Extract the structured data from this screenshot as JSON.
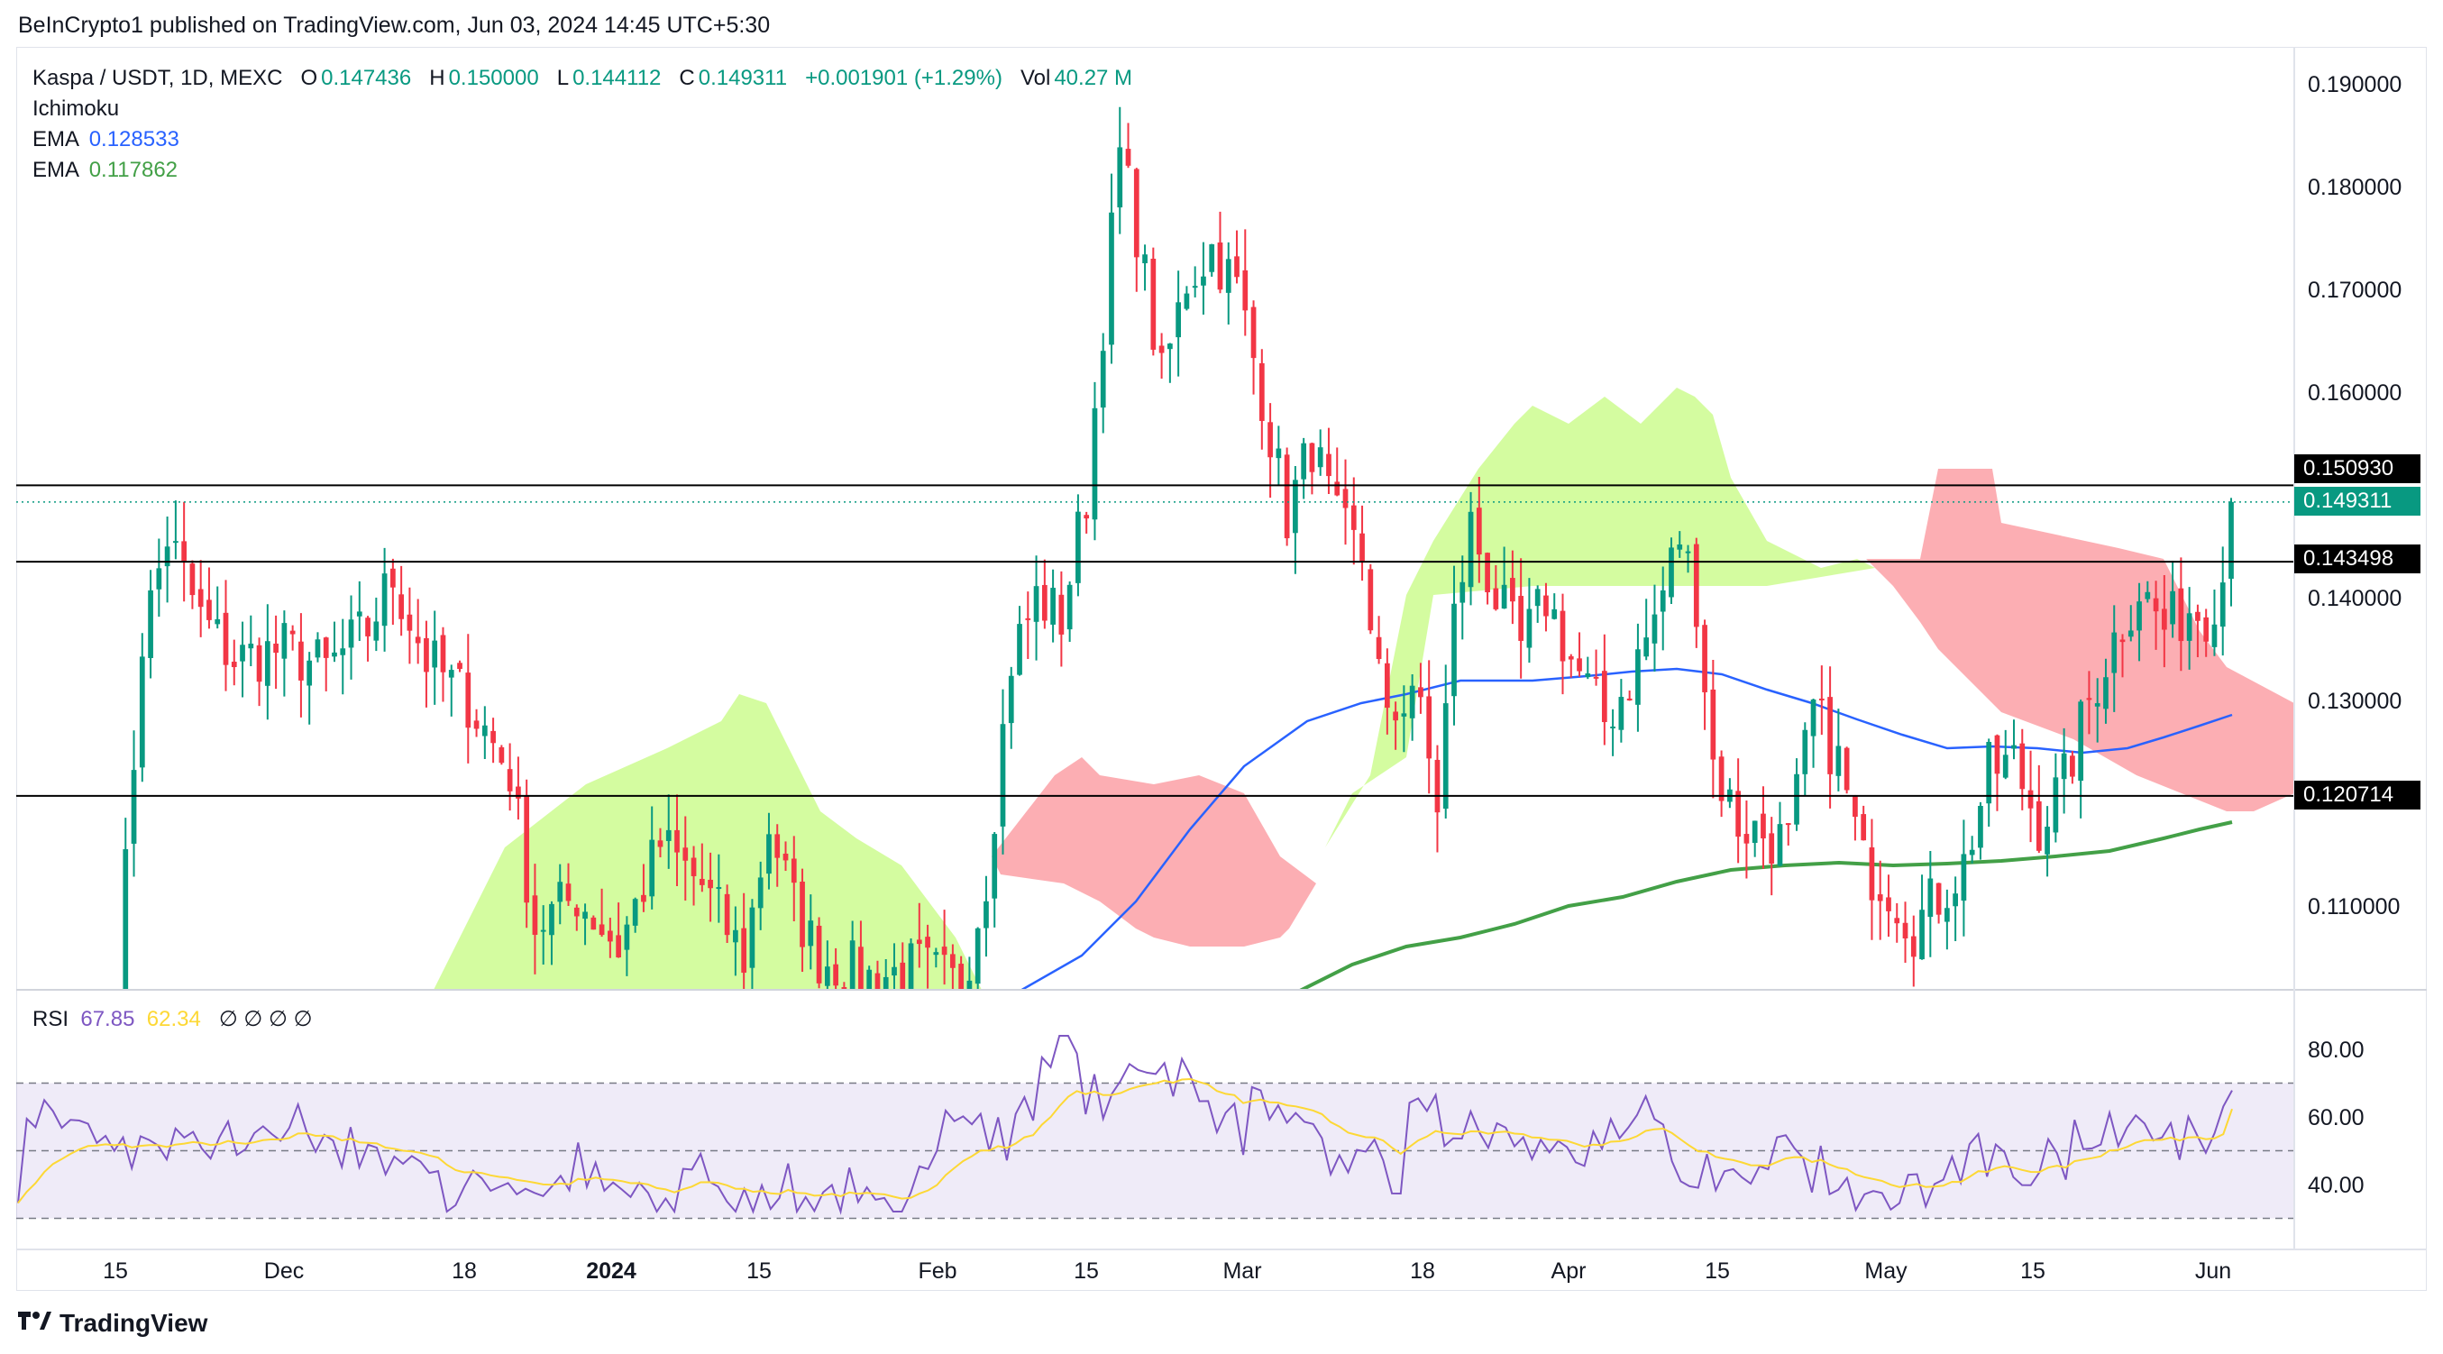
{
  "header": {
    "publisher": "BeInCrypto1 published on TradingView.com, Jun 03, 2024 14:45 UTC+5:30"
  },
  "legend": {
    "symbol": "Kaspa / USDT, 1D, MEXC",
    "o_label": "O",
    "o": "0.147436",
    "h_label": "H",
    "h": "0.150000",
    "l_label": "L",
    "l": "0.144112",
    "c_label": "C",
    "c": "0.149311",
    "change": "+0.001901 (+1.29%)",
    "vol_label": "Vol",
    "vol": "40.27 M",
    "ichimoku": "Ichimoku",
    "ema1_label": "EMA",
    "ema1": "0.128533",
    "ema2_label": "EMA",
    "ema2": "0.117862"
  },
  "rsi_legend": {
    "label": "RSI",
    "rsi": "67.85",
    "ma": "62.34",
    "extra": "∅ ∅ ∅ ∅"
  },
  "price_tags": {
    "resistance": "0.150930",
    "last": "0.149311",
    "level_mid": "0.143498",
    "level_low": "0.120714"
  },
  "colors": {
    "up": "#089981",
    "down": "#f23645",
    "ema_fast": "#2962ff",
    "ema_slow": "#43a047",
    "cloud_bull": "#cdfb8f",
    "cloud_bear": "#fba0a6",
    "rsi": "#7e57c2",
    "rsi_ma": "#fdd835"
  },
  "footer": {
    "brand": "TradingView"
  },
  "chart_data": {
    "type": "candlestick",
    "y_ticks": [
      "0.190000",
      "0.180000",
      "0.170000",
      "0.160000",
      "0.140000",
      "0.130000",
      "0.110000"
    ],
    "ylim": [
      0.1025,
      0.1905
    ],
    "x_ticks": [
      "15",
      "Dec",
      "18",
      "2024",
      "15",
      "Feb",
      "15",
      "Mar",
      "18",
      "Apr",
      "15",
      "May",
      "15",
      "Jun"
    ],
    "horizontal_levels": [
      0.15093,
      0.143498,
      0.120714
    ],
    "rsi": {
      "ticks": [
        "80.00",
        "60.00",
        "40.00"
      ],
      "ylim": [
        30,
        86
      ],
      "band": [
        30,
        70
      ]
    }
  }
}
